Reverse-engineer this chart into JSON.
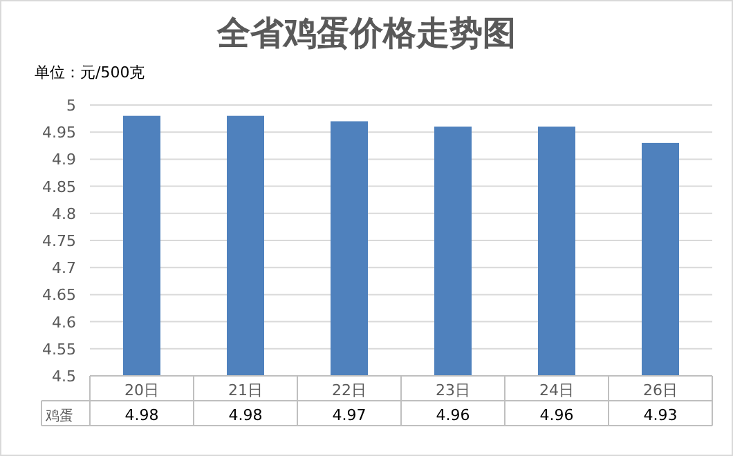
{
  "chart_data": {
    "type": "bar",
    "title": "全省鸡蛋价格走势图",
    "ylabel": "单位：元/500克",
    "categories": [
      "20日",
      "21日",
      "22日",
      "23日",
      "24日",
      "26日"
    ],
    "series": [
      {
        "name": "鸡蛋",
        "color": "#4f81bd",
        "values": [
          4.98,
          4.98,
          4.97,
          4.96,
          4.96,
          4.93
        ]
      }
    ],
    "ylim": [
      4.5,
      5
    ],
    "yticks": [
      4.5,
      4.55,
      4.6,
      4.65,
      4.7,
      4.75,
      4.8,
      4.85,
      4.9,
      4.95,
      5
    ],
    "grid": "y",
    "data_labels": true
  }
}
